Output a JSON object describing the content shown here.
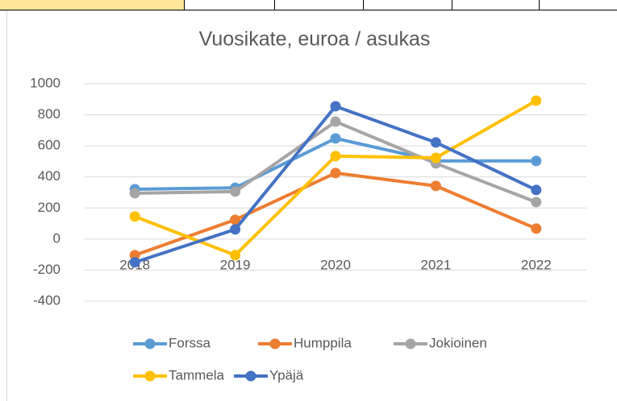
{
  "chart_data": {
    "type": "line",
    "title": "Vuosikate, euroa / asukas",
    "categories": [
      "2018",
      "2019",
      "2020",
      "2021",
      "2022"
    ],
    "series": [
      {
        "name": "Forssa",
        "color": "#5b9bd5",
        "values": [
          321,
          330,
          648,
          503,
          503
        ]
      },
      {
        "name": "Humppila",
        "color": "#ed7d31",
        "values": [
          -104,
          124,
          425,
          342,
          67
        ]
      },
      {
        "name": "Jokioinen",
        "color": "#a5a5a5",
        "values": [
          295,
          306,
          756,
          487,
          238
        ]
      },
      {
        "name": "Tammela",
        "color": "#ffc000",
        "values": [
          145,
          -104,
          534,
          523,
          891
        ]
      },
      {
        "name": "Ypäjä",
        "color": "#4472c4",
        "values": [
          -150,
          62,
          855,
          622,
          316
        ]
      }
    ],
    "ylim": [
      -400,
      1000
    ],
    "yticks": [
      -400,
      -200,
      0,
      200,
      400,
      600,
      800,
      1000
    ],
    "grid": true,
    "legend": "bottom"
  }
}
